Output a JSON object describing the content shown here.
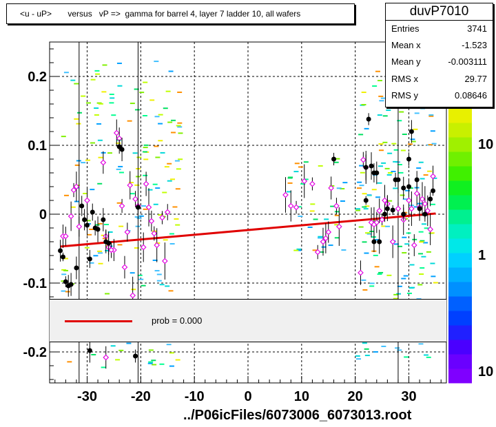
{
  "title": "<u - uP>       versus   vP =>  gamma for barrel 4, layer 7 ladder 10, all wafers",
  "stats": {
    "name": "duvP7010",
    "rows": [
      {
        "k": "Entries",
        "v": "3741"
      },
      {
        "k": "Mean x",
        "v": "-1.523"
      },
      {
        "k": "Mean y",
        "v": "-0.003111"
      },
      {
        "k": "RMS x",
        "v": "29.77"
      },
      {
        "k": "RMS y",
        "v": "0.08646"
      }
    ]
  },
  "legend": {
    "label": "prob = 0.000",
    "color": "#e00000"
  },
  "xfile": "../P06icFiles/6073006_6073013.root",
  "palette_ticks": [
    "10",
    "1",
    "10"
  ],
  "chart_data": {
    "type": "scatter",
    "title": "<u - uP>       versus   vP =>  gamma for barrel 4, layer 7 ladder 10, all wafers",
    "xlabel": "../P06icFiles/6073006_6073013.root",
    "ylabel": "",
    "xlim": [
      -37,
      37
    ],
    "ylim": [
      -0.245,
      0.25
    ],
    "xticks": [
      -30,
      -20,
      -10,
      0,
      10,
      20,
      30
    ],
    "yticks": [
      0.2,
      0.1,
      0,
      -0.1,
      -0.2
    ],
    "grid": true,
    "fit_line": {
      "x": [
        -35,
        35
      ],
      "y": [
        -0.047,
        0.001
      ],
      "color": "#e00000"
    },
    "vertical_lines": [
      -31.5,
      -20.5,
      28
    ],
    "black_points": [
      [
        -35,
        -0.053
      ],
      [
        -34.5,
        -0.062
      ],
      [
        -34,
        -0.098
      ],
      [
        -33.5,
        -0.104
      ],
      [
        -33,
        -0.102
      ],
      [
        -31,
        0.012
      ],
      [
        -30.5,
        -0.008
      ],
      [
        -30,
        -0.016
      ],
      [
        -29.5,
        -0.065
      ],
      [
        -29,
        0.003
      ],
      [
        -28.5,
        -0.02
      ],
      [
        -28,
        -0.022
      ],
      [
        -27,
        -0.008
      ],
      [
        -26.5,
        -0.04
      ],
      [
        -26,
        -0.042
      ],
      [
        -24,
        0.098
      ],
      [
        -23.5,
        0.094
      ],
      [
        -32,
        -0.078
      ],
      [
        -29.5,
        -0.198
      ],
      [
        -20.5,
        0.01
      ],
      [
        -21,
        -0.206
      ],
      [
        16,
        0.08
      ],
      [
        22,
        0.068
      ],
      [
        22.5,
        0.138
      ],
      [
        23,
        0.07
      ],
      [
        23.5,
        0.06
      ],
      [
        24,
        0.06
      ],
      [
        22,
        0.02
      ],
      [
        23.5,
        -0.04
      ],
      [
        24.5,
        -0.04
      ],
      [
        25.5,
        0.0
      ],
      [
        26,
        0.008
      ],
      [
        27,
        0.006
      ],
      [
        27.5,
        0.05
      ],
      [
        28,
        0.05
      ],
      [
        29,
        0.038
      ],
      [
        30,
        0.04
      ],
      [
        30.5,
        0.12
      ],
      [
        31.5,
        0.05
      ],
      [
        32,
        0.008
      ],
      [
        33,
        0.0
      ],
      [
        34,
        0.022
      ],
      [
        34.5,
        0.034
      ],
      [
        28,
        0.188
      ],
      [
        30,
        0.08
      ],
      [
        29,
        0.0
      ]
    ],
    "magenta_points": [
      [
        -34.5,
        -0.032
      ],
      [
        -34,
        -0.032
      ],
      [
        -33,
        -0.003
      ],
      [
        -32.5,
        0.035
      ],
      [
        -32,
        0.04
      ],
      [
        -31.5,
        -0.018
      ],
      [
        -30,
        0.02
      ],
      [
        -27,
        0.075
      ],
      [
        -26.5,
        -0.032
      ],
      [
        -26,
        -0.048
      ],
      [
        -25,
        -0.052
      ],
      [
        -24.5,
        0.118
      ],
      [
        -24,
        0.11
      ],
      [
        -23.5,
        0.012
      ],
      [
        -23,
        -0.077
      ],
      [
        -22.5,
        -0.026
      ],
      [
        -22,
        0.042
      ],
      [
        -21.5,
        -0.118
      ],
      [
        -21,
        0.022
      ],
      [
        -20.5,
        0.012
      ],
      [
        -19.5,
        -0.048
      ],
      [
        -19,
        0.044
      ],
      [
        -18.5,
        0.01
      ],
      [
        -18,
        -0.01
      ],
      [
        -17.5,
        -0.028
      ],
      [
        -17,
        -0.045
      ],
      [
        -16,
        -0.005
      ],
      [
        -15,
        0.003
      ],
      [
        -15.5,
        -0.068
      ],
      [
        -25.5,
        -0.052
      ],
      [
        -26.5,
        -0.208
      ],
      [
        7,
        0.028
      ],
      [
        8,
        0.012
      ],
      [
        9,
        0.01
      ],
      [
        10.5,
        0.048
      ],
      [
        12,
        0.044
      ],
      [
        13,
        -0.055
      ],
      [
        14,
        -0.04
      ],
      [
        14.5,
        -0.035
      ],
      [
        15,
        -0.026
      ],
      [
        15.5,
        0.038
      ],
      [
        16.5,
        0.012
      ],
      [
        17,
        -0.018
      ],
      [
        21.5,
        0.079
      ],
      [
        22,
        0.068
      ],
      [
        23,
        -0.012
      ],
      [
        23.5,
        -0.015
      ],
      [
        24,
        -0.012
      ],
      [
        24.5,
        0.005
      ],
      [
        25,
        -0.008
      ],
      [
        25.5,
        0.02
      ],
      [
        26,
        0.015
      ],
      [
        27,
        -0.04
      ],
      [
        28,
        0.008
      ],
      [
        29,
        -0.008
      ],
      [
        30,
        0.02
      ],
      [
        30.5,
        0.008
      ],
      [
        31,
        -0.045
      ],
      [
        31.5,
        0.03
      ],
      [
        32,
        0.01
      ],
      [
        32.5,
        0.022
      ],
      [
        33,
        0.015
      ],
      [
        33.5,
        0.005
      ],
      [
        34,
        -0.022
      ],
      [
        34.5,
        0.055
      ],
      [
        21,
        -0.085
      ]
    ]
  }
}
